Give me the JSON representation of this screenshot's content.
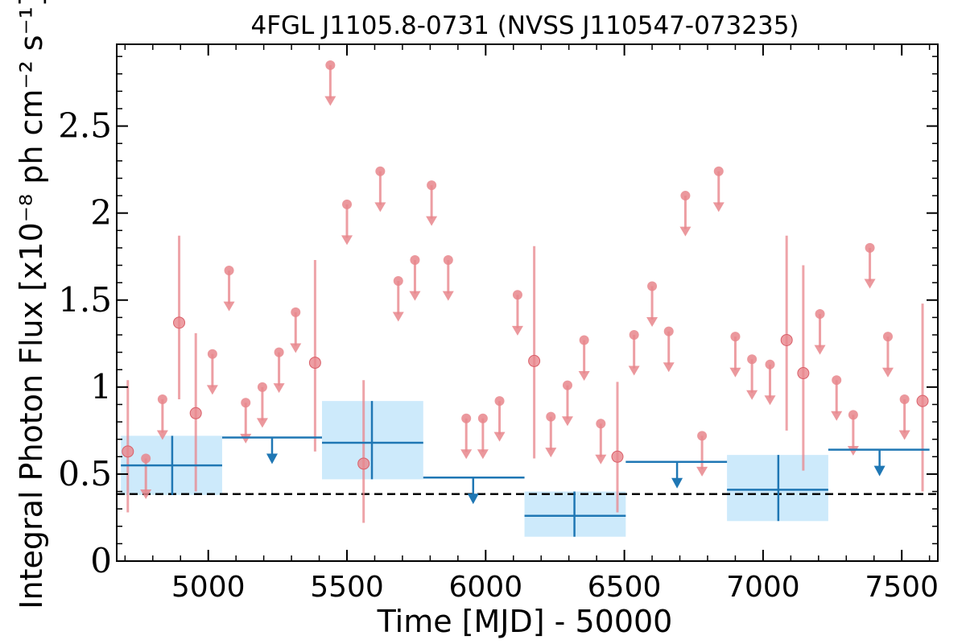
{
  "chart_data": {
    "type": "scatter",
    "title": "4FGL J1105.8-0731 (NVSS J110547-073235)",
    "xlabel": "Time [MJD] - 50000",
    "ylabel": "Integral Photon Flux [x10⁻⁸ ph cm⁻² s⁻¹]",
    "xlim": [
      4670,
      7630
    ],
    "ylim": [
      0,
      2.97
    ],
    "x_ticks": [
      5000,
      5500,
      6000,
      6500,
      7000,
      7500
    ],
    "x_tick_labels": [
      "5000",
      "5500",
      "6000",
      "6500",
      "7000",
      "7500"
    ],
    "y_ticks": [
      0,
      0.5,
      1,
      1.5,
      2,
      2.5
    ],
    "y_tick_labels": [
      "0",
      "0.5",
      "1",
      "1.5",
      "2",
      "2.5"
    ],
    "reference_level": 0.385,
    "colors": {
      "short_bins": "#e8868c",
      "long_bins": "#1f77b4",
      "long_bins_band": "#cdeafb",
      "reference_line": "#000000"
    },
    "short_bins_detections": [
      {
        "x": 4710,
        "y": 0.63,
        "ylow": 0.28,
        "yhigh": 1.04
      },
      {
        "x": 4895,
        "y": 1.37,
        "ylow": 0.93,
        "yhigh": 1.87
      },
      {
        "x": 4955,
        "y": 0.85,
        "ylow": 0.4,
        "yhigh": 1.31
      },
      {
        "x": 5385,
        "y": 1.14,
        "ylow": 0.63,
        "yhigh": 1.73
      },
      {
        "x": 5560,
        "y": 0.56,
        "ylow": 0.22,
        "yhigh": 1.04
      },
      {
        "x": 6175,
        "y": 1.15,
        "ylow": 0.59,
        "yhigh": 1.81
      },
      {
        "x": 6475,
        "y": 0.6,
        "ylow": 0.28,
        "yhigh": 1.03
      },
      {
        "x": 7085,
        "y": 1.27,
        "ylow": 0.75,
        "yhigh": 1.87
      },
      {
        "x": 7145,
        "y": 1.08,
        "ylow": 0.52,
        "yhigh": 1.7
      },
      {
        "x": 7575,
        "y": 0.92,
        "ylow": 0.4,
        "yhigh": 1.48
      }
    ],
    "short_bins_upper_limits": [
      {
        "x": 4775,
        "y": 0.59
      },
      {
        "x": 4835,
        "y": 0.93
      },
      {
        "x": 5015,
        "y": 1.19
      },
      {
        "x": 5075,
        "y": 1.67
      },
      {
        "x": 5135,
        "y": 0.91
      },
      {
        "x": 5195,
        "y": 1.0
      },
      {
        "x": 5255,
        "y": 1.2
      },
      {
        "x": 5315,
        "y": 1.43
      },
      {
        "x": 5440,
        "y": 2.85
      },
      {
        "x": 5500,
        "y": 2.05
      },
      {
        "x": 5620,
        "y": 2.24
      },
      {
        "x": 5685,
        "y": 1.61
      },
      {
        "x": 5745,
        "y": 1.73
      },
      {
        "x": 5805,
        "y": 2.16
      },
      {
        "x": 5865,
        "y": 1.73
      },
      {
        "x": 5930,
        "y": 0.82
      },
      {
        "x": 5990,
        "y": 0.82
      },
      {
        "x": 6050,
        "y": 0.92
      },
      {
        "x": 6115,
        "y": 1.53
      },
      {
        "x": 6235,
        "y": 0.83
      },
      {
        "x": 6295,
        "y": 1.01
      },
      {
        "x": 6355,
        "y": 1.27
      },
      {
        "x": 6415,
        "y": 0.79
      },
      {
        "x": 6535,
        "y": 1.3
      },
      {
        "x": 6600,
        "y": 1.58
      },
      {
        "x": 6660,
        "y": 1.32
      },
      {
        "x": 6720,
        "y": 2.1
      },
      {
        "x": 6780,
        "y": 0.72
      },
      {
        "x": 6840,
        "y": 2.24
      },
      {
        "x": 6900,
        "y": 1.29
      },
      {
        "x": 6960,
        "y": 1.16
      },
      {
        "x": 7025,
        "y": 1.13
      },
      {
        "x": 7205,
        "y": 1.42
      },
      {
        "x": 7265,
        "y": 1.04
      },
      {
        "x": 7325,
        "y": 0.84
      },
      {
        "x": 7385,
        "y": 1.8
      },
      {
        "x": 7450,
        "y": 1.29
      },
      {
        "x": 7510,
        "y": 0.93
      }
    ],
    "long_bins_detections": [
      {
        "x": 4870,
        "xlow": 4685,
        "xhigh": 5050,
        "y": 0.55,
        "ylow": 0.38,
        "yhigh": 0.72
      },
      {
        "x": 5590,
        "xlow": 5410,
        "xhigh": 5775,
        "y": 0.68,
        "ylow": 0.47,
        "yhigh": 0.92
      },
      {
        "x": 6320,
        "xlow": 6140,
        "xhigh": 6505,
        "y": 0.26,
        "ylow": 0.14,
        "yhigh": 0.4
      },
      {
        "x": 7055,
        "xlow": 6870,
        "xhigh": 7235,
        "y": 0.41,
        "ylow": 0.23,
        "yhigh": 0.61
      }
    ],
    "long_bins_upper_limits": [
      {
        "x": 5230,
        "xlow": 5050,
        "xhigh": 5410,
        "y": 0.71
      },
      {
        "x": 5955,
        "xlow": 5775,
        "xhigh": 6140,
        "y": 0.48
      },
      {
        "x": 6690,
        "xlow": 6505,
        "xhigh": 6870,
        "y": 0.57
      },
      {
        "x": 7420,
        "xlow": 7235,
        "xhigh": 7600,
        "y": 0.64
      }
    ]
  }
}
